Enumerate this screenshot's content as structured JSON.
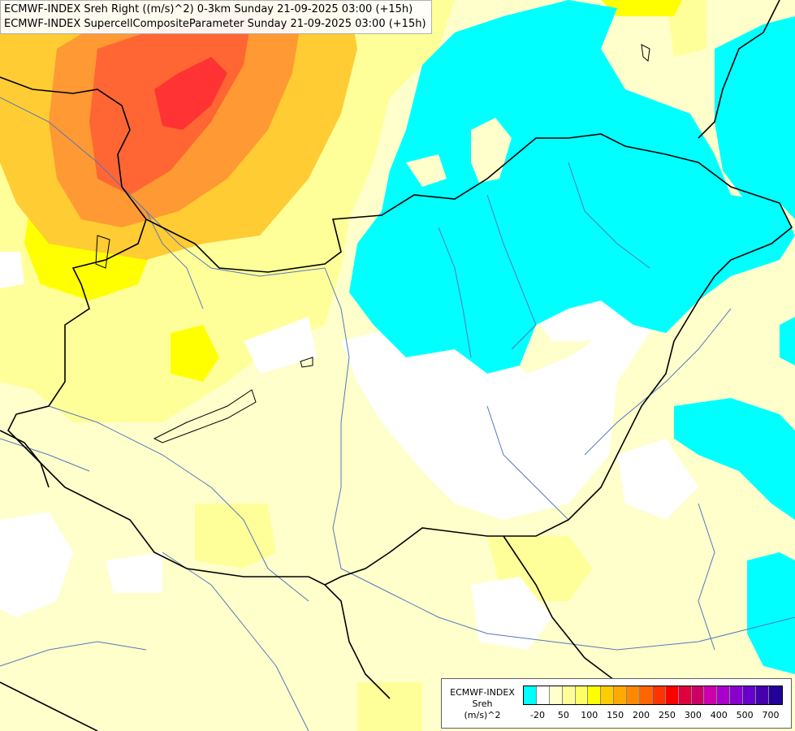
{
  "title_lines": [
    "ECMWF-INDEX Sreh Right ((m/s)^2) 0-3km Sunday 21-09-2025 03:00 (+15h)",
    "ECMWF-INDEX SupercellCompositeParameter Sunday 21-09-2025 03:00 (+15h)"
  ],
  "legend": {
    "line1": "ECMWF-INDEX",
    "line2": "Sreh",
    "line3": "(m/s)^2",
    "colors": [
      "#00ffff",
      "#ffffff",
      "#ffffcc",
      "#ffff99",
      "#ffff66",
      "#ffff00",
      "#ffcc00",
      "#ffaa00",
      "#ff8800",
      "#ff6600",
      "#ff3300",
      "#ff0000",
      "#e00040",
      "#cc0066",
      "#cc00aa",
      "#aa00cc",
      "#8800cc",
      "#6600cc",
      "#4400aa",
      "#220099"
    ],
    "tick_labels": [
      "-20",
      "50",
      "100",
      "150",
      "200",
      "250",
      "300",
      "400",
      "500",
      "700"
    ]
  },
  "map_colors": {
    "background": "#ffffcc",
    "cyan": "#00ffff",
    "white": "#ffffff",
    "light_yellow": "#ffff99",
    "yellow": "#ffff00",
    "gold": "#ffcc33",
    "orange": "#ff9933",
    "dark_orange": "#ff6633",
    "red": "#ff3333",
    "border": "#000000",
    "river": "#5577bb"
  }
}
